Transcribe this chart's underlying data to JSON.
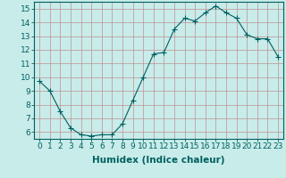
{
  "x": [
    0,
    1,
    2,
    3,
    4,
    5,
    6,
    7,
    8,
    9,
    10,
    11,
    12,
    13,
    14,
    15,
    16,
    17,
    18,
    19,
    20,
    21,
    22,
    23
  ],
  "y": [
    9.7,
    9.0,
    7.5,
    6.3,
    5.8,
    5.7,
    5.8,
    5.8,
    6.6,
    8.3,
    10.0,
    11.7,
    11.8,
    13.5,
    14.3,
    14.1,
    14.7,
    15.2,
    14.7,
    14.3,
    13.1,
    12.8,
    12.8,
    11.5
  ],
  "line_color": "#006060",
  "marker": "+",
  "marker_size": 4,
  "bg_color": "#c8ecea",
  "grid_color": "#c09090",
  "xlabel": "Humidex (Indice chaleur)",
  "xlim": [
    -0.5,
    23.5
  ],
  "ylim": [
    5.5,
    15.5
  ],
  "yticks": [
    6,
    7,
    8,
    9,
    10,
    11,
    12,
    13,
    14,
    15
  ],
  "xticks": [
    0,
    1,
    2,
    3,
    4,
    5,
    6,
    7,
    8,
    9,
    10,
    11,
    12,
    13,
    14,
    15,
    16,
    17,
    18,
    19,
    20,
    21,
    22,
    23
  ],
  "xlabel_fontsize": 7.5,
  "tick_fontsize": 6.5
}
